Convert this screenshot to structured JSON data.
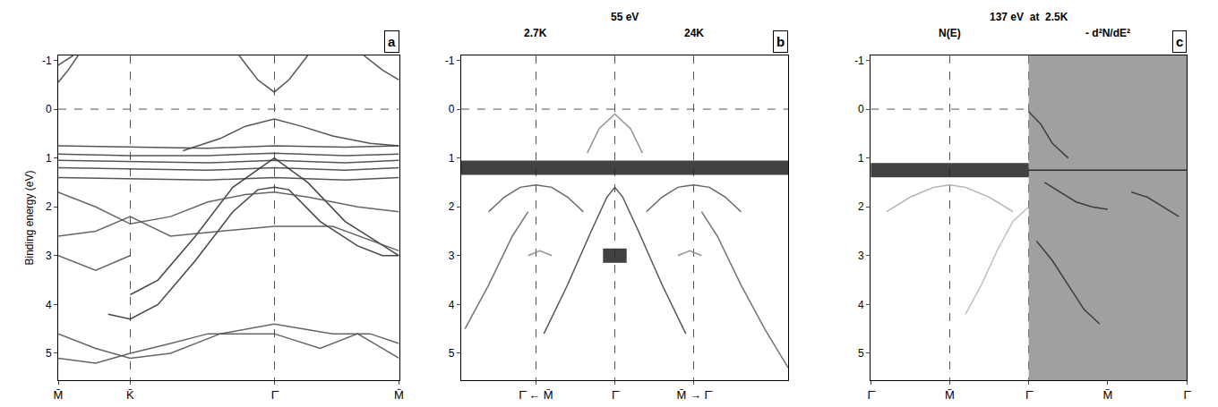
{
  "chart_data": [
    {
      "type": "line",
      "panel": "a",
      "ylabel": "Binding energy (eV)",
      "xlim": [
        0,
        2.732
      ],
      "ylim": [
        5.55,
        -1.1
      ],
      "xticks": [
        {
          "value": 0,
          "label": "M̄"
        },
        {
          "value": 0.577,
          "label": "K̄"
        },
        {
          "value": 1.732,
          "label": "Γ̄"
        },
        {
          "value": 2.732,
          "label": "M̄"
        }
      ],
      "yticks": [
        -1,
        0,
        1,
        2,
        3,
        4,
        5
      ],
      "grid": true,
      "hlines": [
        0
      ],
      "series": [
        {
          "color": "#444444",
          "line_style": "solid",
          "x": [
            1.45,
            1.6,
            1.732,
            1.85,
            2.0
          ],
          "values": [
            -1.1,
            -0.6,
            -0.35,
            -0.6,
            -1.1
          ]
        },
        {
          "color": "#444444",
          "line_style": "solid",
          "x": [
            0,
            0.08,
            0.16
          ],
          "values": [
            -0.55,
            -0.8,
            -1.1
          ]
        },
        {
          "color": "#444444",
          "line_style": "solid",
          "x": [
            0,
            0.06,
            0.12
          ],
          "values": [
            -0.9,
            -1.0,
            -1.1
          ]
        },
        {
          "color": "#444444",
          "line_style": "solid",
          "x": [
            2.45,
            2.6,
            2.732
          ],
          "values": [
            -1.1,
            -0.8,
            -0.6
          ]
        },
        {
          "color": "#444444",
          "line_style": "solid",
          "x": [
            0,
            0.577,
            1.2,
            1.732,
            2.3,
            2.732
          ],
          "values": [
            0.75,
            0.78,
            0.8,
            0.75,
            0.78,
            0.75
          ]
        },
        {
          "color": "#444444",
          "line_style": "solid",
          "x": [
            0,
            0.577,
            1.2,
            1.732,
            2.3,
            2.732
          ],
          "values": [
            0.92,
            0.95,
            0.95,
            0.9,
            0.95,
            0.92
          ]
        },
        {
          "color": "#444444",
          "line_style": "solid",
          "x": [
            0,
            0.577,
            1.2,
            1.732,
            2.3,
            2.732
          ],
          "values": [
            1.05,
            1.08,
            1.1,
            1.05,
            1.1,
            1.05
          ]
        },
        {
          "color": "#444444",
          "line_style": "solid",
          "x": [
            0,
            0.577,
            1.2,
            1.732,
            2.3,
            2.732
          ],
          "values": [
            1.2,
            1.22,
            1.25,
            1.2,
            1.25,
            1.2
          ]
        },
        {
          "color": "#444444",
          "line_style": "solid",
          "x": [
            0,
            0.577,
            1.2,
            1.732,
            2.3,
            2.732
          ],
          "values": [
            1.4,
            1.42,
            1.45,
            1.4,
            1.45,
            1.4
          ]
        },
        {
          "color": "#444444",
          "line_style": "solid",
          "x": [
            1.0,
            1.3,
            1.5,
            1.732,
            1.95,
            2.2,
            2.5,
            2.732
          ],
          "values": [
            0.85,
            0.6,
            0.35,
            0.2,
            0.35,
            0.55,
            0.7,
            0.75
          ]
        },
        {
          "color": "#333333",
          "line_style": "solid",
          "x": [
            0.4,
            0.577,
            0.8,
            1.1,
            1.4,
            1.6,
            1.732,
            1.85,
            2.1,
            2.4,
            2.6,
            2.732
          ],
          "values": [
            4.2,
            4.3,
            4.0,
            3.1,
            2.1,
            1.65,
            1.6,
            1.65,
            2.3,
            2.8,
            3.0,
            3.0
          ]
        },
        {
          "color": "#333333",
          "line_style": "solid",
          "x": [
            0.577,
            0.8,
            1.1,
            1.4,
            1.732,
            2.0,
            2.3,
            2.732
          ],
          "values": [
            3.8,
            3.5,
            2.6,
            1.6,
            1.0,
            1.5,
            2.3,
            3.0
          ]
        },
        {
          "color": "#555555",
          "line_style": "solid",
          "x": [
            0,
            0.3,
            0.577,
            0.9,
            1.2,
            1.5,
            1.732,
            2.0,
            2.4,
            2.732
          ],
          "values": [
            1.7,
            2.0,
            2.35,
            2.2,
            1.9,
            1.75,
            1.7,
            1.8,
            2.0,
            2.1
          ]
        },
        {
          "color": "#555555",
          "line_style": "solid",
          "x": [
            0,
            0.3,
            0.577,
            0.9,
            1.3,
            1.732,
            2.2,
            2.732
          ],
          "values": [
            2.6,
            2.5,
            2.2,
            2.6,
            2.5,
            2.4,
            2.4,
            2.9
          ]
        },
        {
          "color": "#555555",
          "line_style": "solid",
          "x": [
            0,
            0.3,
            0.577
          ],
          "values": [
            3.0,
            3.3,
            3.0
          ]
        },
        {
          "color": "#555555",
          "line_style": "solid",
          "x": [
            0,
            0.3,
            0.577,
            0.9,
            1.2,
            1.5,
            1.732,
            2.1,
            2.4,
            2.732
          ],
          "values": [
            5.1,
            5.2,
            5.0,
            4.8,
            4.6,
            4.6,
            4.6,
            4.9,
            4.6,
            5.1
          ]
        },
        {
          "color": "#555555",
          "line_style": "solid",
          "x": [
            0,
            0.3,
            0.577,
            0.9,
            1.3,
            1.732,
            2.2,
            2.5,
            2.732
          ],
          "values": [
            4.6,
            4.9,
            5.1,
            5.0,
            4.6,
            4.4,
            4.6,
            4.6,
            4.8
          ]
        }
      ]
    },
    {
      "type": "line",
      "panel": "b",
      "title": "55 eV",
      "annotations": [
        {
          "text": "2.7K",
          "x": -1
        },
        {
          "text": "24K",
          "x": 1
        }
      ],
      "xlim": [
        -1.95,
        2.2
      ],
      "ylim": [
        5.55,
        -1.1
      ],
      "xticks": [
        {
          "value": -1,
          "label": "Γ̄ ← M̄"
        },
        {
          "value": 0,
          "label": "Γ̄"
        },
        {
          "value": 1,
          "label": "M̄ → Γ̄"
        }
      ],
      "yticks": [
        -1,
        0,
        1,
        2,
        3,
        4,
        5
      ],
      "grid": true,
      "hlines": [
        0
      ],
      "series": [
        {
          "color": "#222222",
          "line_style": "broad",
          "x": [
            -1.95,
            2.2
          ],
          "values": [
            1.2,
            1.2
          ]
        },
        {
          "color": "#222222",
          "line_style": "broad",
          "x": [
            -0.15,
            0.15
          ],
          "values": [
            3.0,
            3.0
          ]
        },
        {
          "color": "#888888",
          "line_style": "solid",
          "x": [
            -0.35,
            -0.2,
            0,
            0.2,
            0.35
          ],
          "values": [
            0.9,
            0.4,
            0.1,
            0.4,
            0.9
          ]
        },
        {
          "color": "#444444",
          "line_style": "solid",
          "x": [
            -0.9,
            -0.6,
            -0.3,
            -0.1,
            0,
            0.1,
            0.3,
            0.6,
            0.9
          ],
          "values": [
            4.6,
            3.6,
            2.5,
            1.8,
            1.6,
            1.8,
            2.5,
            3.6,
            4.6
          ]
        },
        {
          "color": "#555555",
          "line_style": "solid",
          "x": [
            -1.6,
            -1.4,
            -1.2,
            -1.0,
            -0.8,
            -0.6,
            -0.4
          ],
          "values": [
            2.1,
            1.8,
            1.6,
            1.55,
            1.6,
            1.8,
            2.1
          ]
        },
        {
          "color": "#555555",
          "line_style": "solid",
          "x": [
            0.4,
            0.6,
            0.8,
            1.0,
            1.2,
            1.4,
            1.6
          ],
          "values": [
            2.1,
            1.8,
            1.6,
            1.55,
            1.6,
            1.8,
            2.1
          ]
        },
        {
          "color": "#666666",
          "line_style": "solid",
          "x": [
            -1.9,
            -1.6,
            -1.3,
            -1.1
          ],
          "values": [
            4.5,
            3.6,
            2.6,
            2.1
          ]
        },
        {
          "color": "#666666",
          "line_style": "solid",
          "x": [
            1.1,
            1.3,
            1.6,
            1.9,
            2.2
          ],
          "values": [
            2.1,
            2.6,
            3.6,
            4.5,
            5.3
          ]
        },
        {
          "color": "#888888",
          "line_style": "solid",
          "x": [
            -1.1,
            -0.95,
            -0.8
          ],
          "values": [
            3.0,
            2.9,
            3.0
          ]
        },
        {
          "color": "#888888",
          "line_style": "solid",
          "x": [
            0.8,
            0.95,
            1.1
          ],
          "values": [
            3.0,
            2.9,
            3.0
          ]
        }
      ]
    },
    {
      "type": "line",
      "panel": "c",
      "title": "137 eV  at  2.5K",
      "annotations": [
        {
          "text": "N(E)",
          "x": 1
        },
        {
          "text": "- d²N/dE²",
          "x": 3
        }
      ],
      "xlim": [
        0,
        4
      ],
      "ylim": [
        5.55,
        -1.1
      ],
      "xticks": [
        {
          "value": 0,
          "label": "Γ̄"
        },
        {
          "value": 1,
          "label": "M̄"
        },
        {
          "value": 2,
          "label": "Γ̄"
        },
        {
          "value": 3,
          "label": "M̄"
        },
        {
          "value": 4,
          "label": "Γ̄"
        }
      ],
      "yticks": [
        -1,
        0,
        1,
        2,
        3,
        4,
        5
      ],
      "grid": true,
      "hlines": [
        0
      ],
      "series": [
        {
          "color": "#a0a0a0",
          "type": "area",
          "x": [
            2,
            4,
            4,
            2
          ],
          "values": [
            -1.1,
            -1.1,
            5.55,
            5.55
          ]
        },
        {
          "color": "#222222",
          "line_style": "broad",
          "x": [
            0,
            2
          ],
          "values": [
            1.25,
            1.25
          ]
        },
        {
          "color": "#222222",
          "line_style": "solid",
          "x": [
            2,
            4
          ],
          "values": [
            1.25,
            1.25
          ]
        },
        {
          "color": "#aaaaaa",
          "line_style": "solid",
          "x": [
            0.2,
            0.5,
            0.8,
            1.0,
            1.2,
            1.5,
            1.8
          ],
          "values": [
            2.1,
            1.8,
            1.6,
            1.55,
            1.6,
            1.8,
            2.1
          ]
        },
        {
          "color": "#bbbbbb",
          "line_style": "solid",
          "x": [
            1.2,
            1.4,
            1.6,
            1.8,
            2.0
          ],
          "values": [
            4.2,
            3.6,
            2.9,
            2.3,
            2.0
          ]
        },
        {
          "color": "#333333",
          "line_style": "solid",
          "x": [
            2.0,
            2.15,
            2.3,
            2.5
          ],
          "values": [
            0.05,
            0.3,
            0.7,
            1.0
          ]
        },
        {
          "color": "#333333",
          "line_style": "solid",
          "x": [
            2.2,
            2.4,
            2.6,
            2.8,
            3.0
          ],
          "values": [
            1.5,
            1.7,
            1.9,
            2.0,
            2.05
          ]
        },
        {
          "color": "#333333",
          "line_style": "solid",
          "x": [
            2.1,
            2.3,
            2.5,
            2.7,
            2.9
          ],
          "values": [
            2.7,
            3.1,
            3.6,
            4.1,
            4.4
          ]
        },
        {
          "color": "#333333",
          "line_style": "solid",
          "x": [
            3.3,
            3.5,
            3.7,
            3.9
          ],
          "values": [
            1.7,
            1.8,
            2.0,
            2.2
          ]
        }
      ]
    }
  ]
}
